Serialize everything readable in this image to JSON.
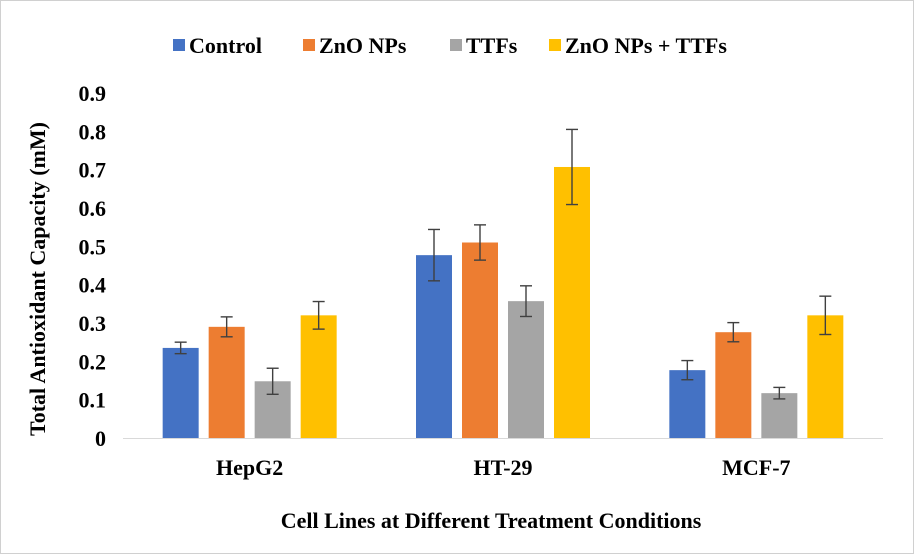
{
  "chart_data": {
    "type": "bar",
    "title": "",
    "xlabel": "Cell Lines at Different Treatment Conditions",
    "ylabel": "Total Antioxidant Capacity (mM)",
    "ylim": [
      0,
      0.9
    ],
    "yticks": [
      "0",
      "0.1",
      "0.2",
      "0.3",
      "0.4",
      "0.5",
      "0.6",
      "0.7",
      "0.8",
      "0.9"
    ],
    "ytick_values": [
      0,
      0.1,
      0.2,
      0.3,
      0.4,
      0.5,
      0.6,
      0.7,
      0.8,
      0.9
    ],
    "grid": false,
    "legend_position": "top",
    "categories": [
      "HepG2",
      "HT-29",
      "MCF-7"
    ],
    "series": [
      {
        "name": "Control",
        "color": "#4472C4",
        "values": [
          0.235,
          0.477,
          0.177
        ],
        "errors": [
          0.015,
          0.067,
          0.025
        ]
      },
      {
        "name": "ZnO NPs",
        "color": "#ED7D31",
        "values": [
          0.29,
          0.51,
          0.276
        ],
        "errors": [
          0.026,
          0.046,
          0.025
        ]
      },
      {
        "name": "TTFs",
        "color": "#A5A5A5",
        "values": [
          0.148,
          0.357,
          0.117
        ],
        "errors": [
          0.034,
          0.04,
          0.015
        ]
      },
      {
        "name": "ZnO NPs + TTFs",
        "color": "#FFC000",
        "values": [
          0.32,
          0.707,
          0.32
        ],
        "errors": [
          0.036,
          0.098,
          0.05
        ]
      }
    ]
  }
}
